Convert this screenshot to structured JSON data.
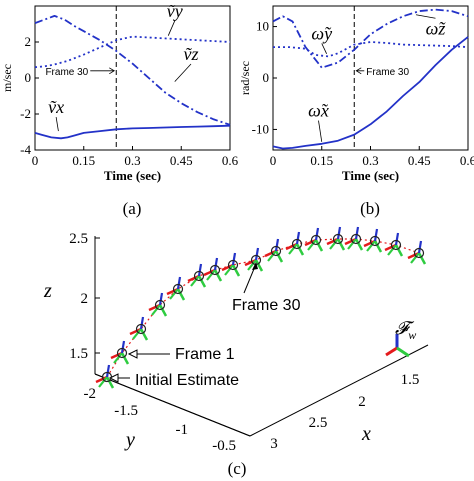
{
  "colors": {
    "series": "#2332c8",
    "axis": "#000000",
    "frame_x": "#e41a1c",
    "frame_y": "#2ecc40",
    "frame_z": "#2332c8"
  },
  "chart_data": [
    {
      "id": "a",
      "type": "line",
      "caption": "(a)",
      "xlabel": "Time (sec)",
      "ylabel": "m/sec",
      "xlim": [
        0,
        0.6
      ],
      "ylim": [
        -4,
        4
      ],
      "xticks": [
        "0",
        "0.15",
        "0.3",
        "0.45",
        "0.6"
      ],
      "yticks": [
        "-4",
        "-2",
        "0",
        "2"
      ],
      "marker_line": {
        "x": 0.25,
        "label": "Frame 30"
      },
      "series": [
        {
          "name": "ṽx",
          "style": "solid",
          "x": [
            0,
            0.02,
            0.05,
            0.08,
            0.1,
            0.12,
            0.15,
            0.2,
            0.25,
            0.3,
            0.35,
            0.4,
            0.45,
            0.5,
            0.55,
            0.6
          ],
          "y": [
            -3.05,
            -3.15,
            -3.3,
            -3.35,
            -3.3,
            -3.2,
            -3.05,
            -2.95,
            -2.85,
            -2.8,
            -2.78,
            -2.75,
            -2.72,
            -2.7,
            -2.68,
            -2.65
          ]
        },
        {
          "name": "ṽy",
          "style": "dotted",
          "x": [
            0,
            0.03,
            0.06,
            0.1,
            0.15,
            0.2,
            0.25,
            0.3,
            0.35,
            0.4,
            0.45,
            0.5,
            0.55,
            0.6
          ],
          "y": [
            0.6,
            0.65,
            0.75,
            0.95,
            1.3,
            1.7,
            2.1,
            2.3,
            2.25,
            2.2,
            2.15,
            2.1,
            2.05,
            2.0
          ]
        },
        {
          "name": "ṽz",
          "style": "dashdot",
          "x": [
            0,
            0.03,
            0.06,
            0.09,
            0.12,
            0.15,
            0.2,
            0.25,
            0.3,
            0.35,
            0.4,
            0.45,
            0.5,
            0.55,
            0.6
          ],
          "y": [
            3.05,
            3.25,
            3.45,
            3.25,
            2.9,
            2.6,
            2.1,
            1.5,
            0.8,
            0.0,
            -0.8,
            -1.4,
            -1.9,
            -2.3,
            -2.6
          ]
        }
      ]
    },
    {
      "id": "b",
      "type": "line",
      "caption": "(b)",
      "xlabel": "Time (sec)",
      "ylabel": "rad/sec",
      "xlim": [
        0,
        0.6
      ],
      "ylim": [
        -14,
        14
      ],
      "xticks": [
        "0",
        "0.15",
        "0.3",
        "0.45",
        "0.6"
      ],
      "yticks": [
        "-10",
        "0",
        "10"
      ],
      "marker_line": {
        "x": 0.25,
        "label": "Frame 30"
      },
      "series": [
        {
          "name": "ω̃x",
          "style": "solid",
          "x": [
            0,
            0.03,
            0.06,
            0.1,
            0.15,
            0.2,
            0.25,
            0.3,
            0.35,
            0.4,
            0.45,
            0.5,
            0.55,
            0.6
          ],
          "y": [
            -13.3,
            -13.7,
            -13.6,
            -13.2,
            -12.8,
            -12.2,
            -11.0,
            -9.0,
            -6.5,
            -3.5,
            -0.8,
            2.5,
            5.5,
            8.0
          ]
        },
        {
          "name": "ω̃y",
          "style": "dotted",
          "x": [
            0,
            0.05,
            0.1,
            0.13,
            0.17,
            0.2,
            0.25,
            0.3,
            0.35,
            0.4,
            0.45,
            0.5,
            0.55,
            0.6
          ],
          "y": [
            6.0,
            6.0,
            5.7,
            4.5,
            4.2,
            4.8,
            6.5,
            7.0,
            6.8,
            6.5,
            6.4,
            6.3,
            6.2,
            6.0
          ]
        },
        {
          "name": "ω̃z",
          "style": "dashdot",
          "x": [
            0,
            0.03,
            0.06,
            0.1,
            0.15,
            0.2,
            0.25,
            0.3,
            0.35,
            0.4,
            0.45,
            0.5,
            0.55,
            0.6
          ],
          "y": [
            11.0,
            12.0,
            11.0,
            6.0,
            2.0,
            3.0,
            5.5,
            8.5,
            10.5,
            12.0,
            13.0,
            13.3,
            13.0,
            12.0
          ]
        }
      ]
    }
  ],
  "panel_c": {
    "caption": "(c)",
    "z_label": "z",
    "z_ticks": [
      "2.5",
      "2",
      "1.5"
    ],
    "y_label": "y",
    "y_ticks": [
      "-2",
      "-1.5",
      "-1",
      "-0.5"
    ],
    "x_label": "x",
    "x_ticks": [
      "3",
      "2.5",
      "2",
      "1.5"
    ],
    "frame_label": "𝓕",
    "frame_label_sub": "w",
    "annotations": [
      "Frame 30",
      "Frame 1",
      "Initial Estimate"
    ]
  }
}
